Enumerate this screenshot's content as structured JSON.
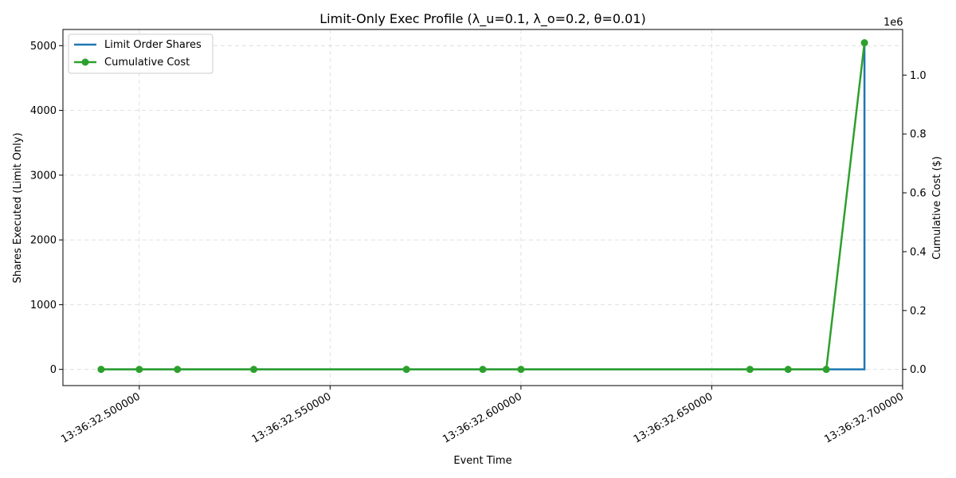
{
  "chart_data": {
    "type": "line",
    "title": "Limit-Only Exec Profile (λ_u=0.1, λ_o=0.2, θ=0.01)",
    "xlabel": "Event Time",
    "ylabel_left": "Shares Executed (Limit Only)",
    "ylabel_right": "Cumulative Cost ($)",
    "right_axis_multiplier": "1e6",
    "x_tick_labels": [
      "13:36:32.500000",
      "13:36:32.550000",
      "13:36:32.600000",
      "13:36:32.650000",
      "13:36:32.700000"
    ],
    "x_tick_values": [
      32.5,
      32.55,
      32.6,
      32.65,
      32.7
    ],
    "x_range": [
      32.48,
      32.7
    ],
    "y_left_ticks": [
      "0",
      "1000",
      "2000",
      "3000",
      "4000",
      "5000"
    ],
    "y_left_range": [
      -250,
      5250
    ],
    "y_right_ticks": [
      "0.0",
      "0.2",
      "0.4",
      "0.6",
      "0.8",
      "1.0"
    ],
    "y_right_range": [
      -0.055,
      1.155
    ],
    "grid": true,
    "legend_position": "top-left",
    "series": [
      {
        "name": "Limit Order Shares",
        "axis": "left",
        "style": "step",
        "color": "#1f77b4",
        "x": [
          32.49,
          32.5,
          32.51,
          32.53,
          32.57,
          32.59,
          32.6,
          32.66,
          32.67,
          32.68,
          32.69
        ],
        "y": [
          0,
          0,
          0,
          0,
          0,
          0,
          0,
          0,
          0,
          0,
          5000
        ]
      },
      {
        "name": "Cumulative Cost",
        "axis": "right",
        "style": "line-marker",
        "color": "#2ca02c",
        "x": [
          32.49,
          32.5,
          32.51,
          32.53,
          32.57,
          32.59,
          32.6,
          32.66,
          32.67,
          32.68,
          32.69
        ],
        "y": [
          0,
          0,
          0,
          0,
          0,
          0,
          0,
          0,
          0,
          0,
          1.11
        ]
      }
    ]
  }
}
